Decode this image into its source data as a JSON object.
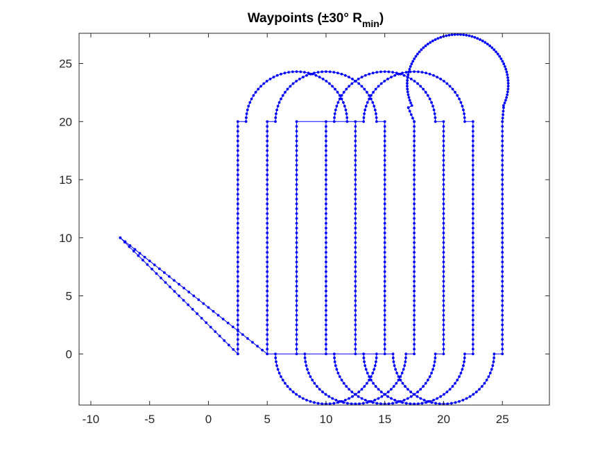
{
  "chart_data": {
    "type": "line",
    "title": "Waypoints (±30° R",
    "title_subscript": "min",
    "title_close": ")",
    "xlabel": "",
    "ylabel": "",
    "xlim": [
      -11,
      29
    ],
    "ylim": [
      -4.4,
      27.6
    ],
    "xticks": [
      -10,
      -5,
      0,
      5,
      10,
      15,
      20,
      25
    ],
    "yticks": [
      0,
      5,
      10,
      15,
      20,
      25
    ],
    "grid": false,
    "box": true,
    "line_color": "#0000ff",
    "marker": "dot",
    "series": [
      {
        "values_note_free": true,
        "segments": [
          {
            "kind": "line",
            "from": [
              -7.5,
              10
            ],
            "to": [
              2.5,
              0
            ],
            "n": 26
          },
          {
            "kind": "line",
            "from": [
              2.5,
              0
            ],
            "to": [
              2.5,
              20
            ],
            "n": 48
          },
          {
            "kind": "arc",
            "center": [
              7.5,
              20
            ],
            "r": 4.3,
            "a0": 180,
            "a1": 0,
            "n": 40
          },
          {
            "kind": "line",
            "from": [
              12.5,
              20
            ],
            "to": [
              12.5,
              0
            ],
            "n": 48
          },
          {
            "kind": "arc",
            "center": [
              17.5,
              0
            ],
            "r": 4.3,
            "a0": 180,
            "a1": 360,
            "n": 40
          },
          {
            "kind": "line",
            "from": [
              22.5,
              0
            ],
            "to": [
              22.5,
              20
            ],
            "n": 48
          },
          {
            "kind": "arc",
            "center": [
              17.5,
              20
            ],
            "r": 4.3,
            "a0": 0,
            "a1": 180,
            "n": 40
          },
          {
            "kind": "line",
            "from": [
              12.5,
              20
            ],
            "to": [
              12.5,
              0
            ],
            "n": 0
          },
          {
            "kind": "line",
            "from": [
              7.5,
              20
            ],
            "to": [
              7.5,
              0
            ],
            "n": 48
          },
          {
            "kind": "arc",
            "center": [
              12.5,
              0
            ],
            "r": 4.3,
            "a0": 180,
            "a1": 360,
            "n": 40
          },
          {
            "kind": "line",
            "from": [
              17.5,
              0
            ],
            "to": [
              17.5,
              20
            ],
            "n": 48
          },
          {
            "kind": "arc",
            "center": [
              17.5,
              23.6
            ],
            "r": 1.0,
            "a0": 180,
            "a1": 150,
            "n": 0
          },
          {
            "kind": "line",
            "from": [
              17.5,
              20
            ],
            "to": [
              17.0,
              21.2
            ],
            "n": 4
          },
          {
            "kind": "arc",
            "center": [
              21.2,
              23.2
            ],
            "r": 4.3,
            "a0": 205,
            "a1": -25,
            "n": 70
          },
          {
            "kind": "line",
            "from": [
              25.1,
              21.2
            ],
            "to": [
              25.0,
              20
            ],
            "n": 4
          },
          {
            "kind": "line",
            "from": [
              25.0,
              20
            ],
            "to": [
              25.0,
              0
            ],
            "n": 48
          },
          {
            "kind": "arc",
            "center": [
              20.0,
              0
            ],
            "r": 4.3,
            "a0": 0,
            "a1": -180,
            "n": 40
          },
          {
            "kind": "line",
            "from": [
              15.0,
              0
            ],
            "to": [
              15.0,
              20
            ],
            "n": 0
          },
          {
            "kind": "line",
            "from": [
              10.0,
              0
            ],
            "to": [
              10.0,
              20
            ],
            "n": 48
          },
          {
            "kind": "arc",
            "center": [
              15.0,
              20
            ],
            "r": 4.3,
            "a0": 180,
            "a1": 0,
            "n": 40
          },
          {
            "kind": "line",
            "from": [
              20.0,
              20
            ],
            "to": [
              20.0,
              0
            ],
            "n": 48
          },
          {
            "kind": "arc",
            "center": [
              15.0,
              0
            ],
            "r": 4.3,
            "a0": 0,
            "a1": -180,
            "n": 40
          },
          {
            "kind": "line",
            "from": [
              10.0,
              0
            ],
            "to": [
              10.0,
              0
            ],
            "n": 0
          },
          {
            "kind": "arc",
            "center": [
              10.0,
              20
            ],
            "r": 4.3,
            "a0": 0,
            "a1": 180,
            "n": 0
          },
          {
            "kind": "line",
            "from": [
              5.0,
              0
            ],
            "to": [
              5.0,
              20
            ],
            "n": 48
          },
          {
            "kind": "arc",
            "center": [
              10.0,
              20
            ],
            "r": 4.3,
            "a0": 180,
            "a1": 0,
            "n": 40
          },
          {
            "kind": "line",
            "from": [
              15.0,
              20
            ],
            "to": [
              15.0,
              0
            ],
            "n": 48
          },
          {
            "kind": "arc",
            "center": [
              10.0,
              0
            ],
            "r": 4.3,
            "a0": 0,
            "a1": -180,
            "n": 40
          },
          {
            "kind": "line",
            "from": [
              5.0,
              0
            ],
            "to": [
              -7.5,
              10
            ],
            "n": 30
          }
        ]
      }
    ]
  }
}
